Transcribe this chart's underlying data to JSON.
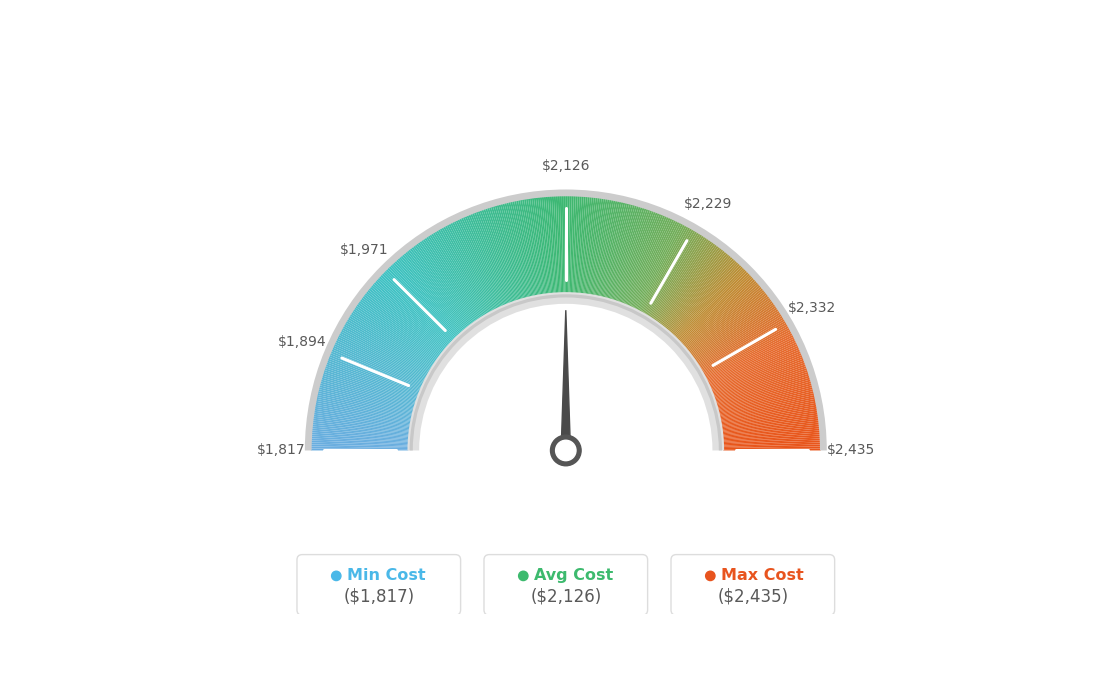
{
  "min_val": 1817,
  "avg_val": 2126,
  "max_val": 2435,
  "tick_labels": [
    "$1,817",
    "$1,894",
    "$1,971",
    "$2,126",
    "$2,229",
    "$2,332",
    "$2,435"
  ],
  "tick_values": [
    1817,
    1894,
    1971,
    2126,
    2229,
    2332,
    2435
  ],
  "legend_labels": [
    "Min Cost",
    "Avg Cost",
    "Max Cost"
  ],
  "legend_values": [
    "($1,817)",
    "($2,126)",
    "($2,435)"
  ],
  "legend_colors": [
    "#4ab8e8",
    "#3dba6e",
    "#e8541e"
  ],
  "bg_color": "#ffffff",
  "needle_color": "#4a4a4a",
  "hub_color": "#555555",
  "inner_arc_color": "#d0d0d0",
  "outer_arc_color": "#cccccc",
  "color_stops": [
    [
      0.0,
      [
        0.42,
        0.68,
        0.88
      ]
    ],
    [
      0.25,
      [
        0.24,
        0.76,
        0.76
      ]
    ],
    [
      0.5,
      [
        0.24,
        0.72,
        0.44
      ]
    ],
    [
      0.65,
      [
        0.45,
        0.68,
        0.35
      ]
    ],
    [
      0.75,
      [
        0.75,
        0.55,
        0.2
      ]
    ],
    [
      0.85,
      [
        0.9,
        0.42,
        0.18
      ]
    ],
    [
      1.0,
      [
        0.91,
        0.33,
        0.1
      ]
    ]
  ]
}
